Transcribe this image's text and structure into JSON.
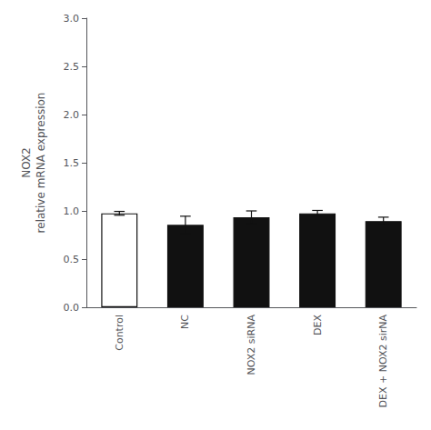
{
  "chart_data": {
    "type": "bar",
    "categories": [
      "Control",
      "NC",
      "NOX2 siRNA",
      "DEX",
      "DEX + NOX2 sirNA"
    ],
    "values": [
      0.975,
      0.855,
      0.935,
      0.975,
      0.895
    ],
    "errors": [
      0.02,
      0.09,
      0.065,
      0.03,
      0.04
    ],
    "colors": [
      "#ffffff",
      "#111111",
      "#111111",
      "#111111",
      "#111111"
    ],
    "ylabel": "NOX2\nrelative mRNA expression",
    "ylim": [
      0.0,
      3.0
    ],
    "yticks": [
      {
        "value": 0,
        "label": "0.0"
      },
      0.5,
      {
        "value": 1,
        "label": "1.0"
      },
      1.5,
      {
        "value": 2,
        "label": "2.0"
      },
      2.5,
      {
        "value": 3,
        "label": "3.0"
      }
    ],
    "grid": false
  }
}
